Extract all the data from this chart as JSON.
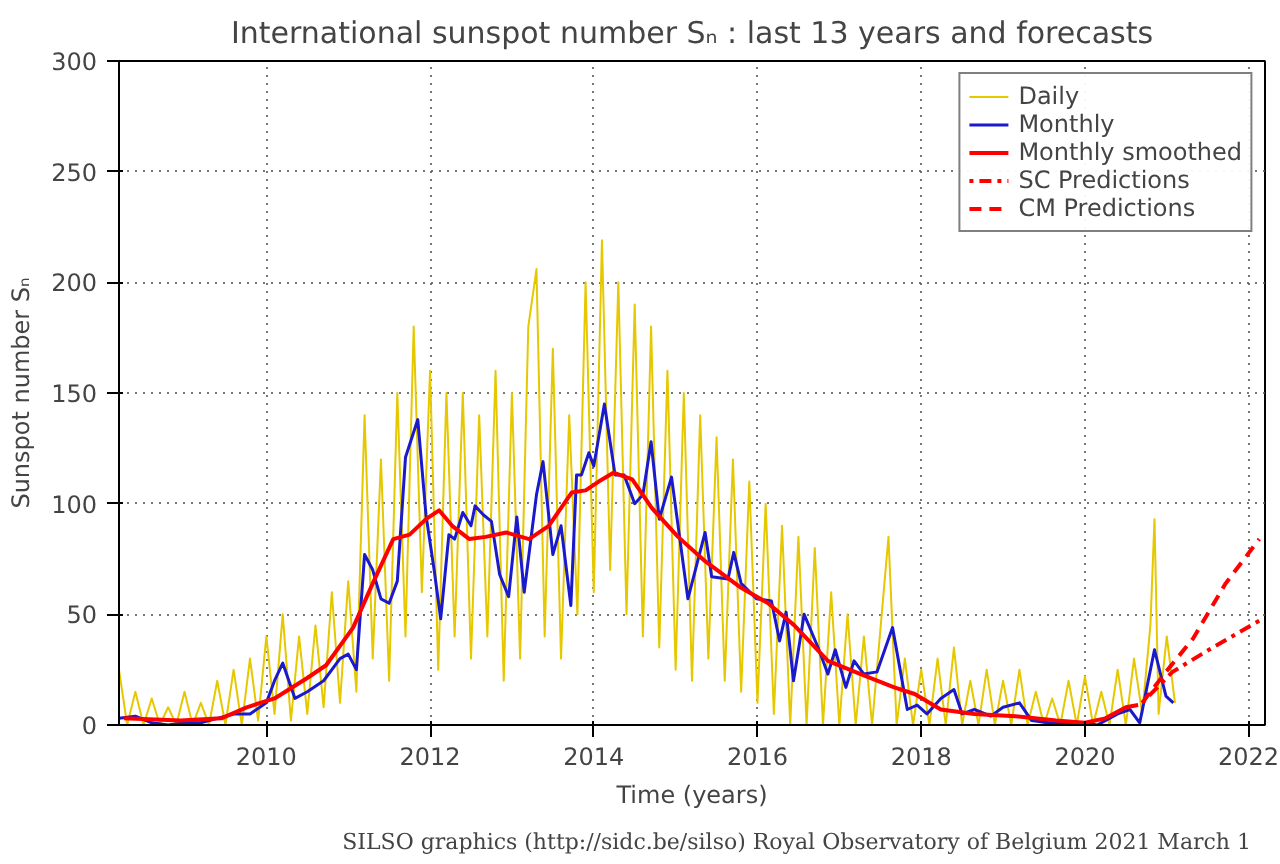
{
  "chart_data": {
    "type": "line",
    "title": "International sunspot number Sₙ : last 13 years and forecasts",
    "xlabel": "Time (years)",
    "ylabel": "Sunspot number Sₙ",
    "annotations": [
      "SILSO graphics (http://sidc.be/silso)  Royal Observatory of Belgium  2021 March 1"
    ],
    "xlim": [
      2008.2,
      2022.2
    ],
    "xticks": [
      2010,
      2012,
      2014,
      2016,
      2018,
      2020,
      2022
    ],
    "ylim": [
      0,
      300
    ],
    "yticks": [
      0,
      50,
      100,
      150,
      200,
      250,
      300
    ],
    "grid": true,
    "legend": "top right",
    "series": [
      {
        "name": "Daily",
        "color": "#e6c800",
        "line_style": "solid",
        "x": [
          2008.2,
          2008.3,
          2008.4,
          2008.5,
          2008.6,
          2008.7,
          2008.8,
          2008.9,
          2009.0,
          2009.1,
          2009.2,
          2009.3,
          2009.4,
          2009.5,
          2009.6,
          2009.7,
          2009.8,
          2009.9,
          2010.0,
          2010.1,
          2010.2,
          2010.3,
          2010.4,
          2010.5,
          2010.6,
          2010.7,
          2010.8,
          2010.9,
          2011.0,
          2011.1,
          2011.2,
          2011.3,
          2011.4,
          2011.5,
          2011.6,
          2011.7,
          2011.8,
          2011.9,
          2012.0,
          2012.1,
          2012.2,
          2012.3,
          2012.4,
          2012.5,
          2012.6,
          2012.7,
          2012.8,
          2012.9,
          2013.0,
          2013.1,
          2013.2,
          2013.3,
          2013.4,
          2013.5,
          2013.6,
          2013.7,
          2013.8,
          2013.9,
          2014.0,
          2014.1,
          2014.2,
          2014.3,
          2014.4,
          2014.5,
          2014.6,
          2014.7,
          2014.8,
          2014.9,
          2015.0,
          2015.1,
          2015.2,
          2015.3,
          2015.4,
          2015.5,
          2015.6,
          2015.7,
          2015.8,
          2015.9,
          2016.0,
          2016.1,
          2016.2,
          2016.3,
          2016.4,
          2016.5,
          2016.6,
          2016.7,
          2016.8,
          2016.9,
          2017.0,
          2017.1,
          2017.2,
          2017.3,
          2017.4,
          2017.6,
          2017.7,
          2017.8,
          2017.9,
          2018.0,
          2018.1,
          2018.2,
          2018.3,
          2018.4,
          2018.5,
          2018.6,
          2018.7,
          2018.8,
          2018.9,
          2019.0,
          2019.1,
          2019.2,
          2019.3,
          2019.4,
          2019.5,
          2019.6,
          2019.7,
          2019.8,
          2019.9,
          2020.0,
          2020.1,
          2020.2,
          2020.3,
          2020.4,
          2020.5,
          2020.6,
          2020.7,
          2020.8,
          2020.85,
          2020.9,
          2021.0,
          2021.1
        ],
        "values": [
          25,
          0,
          15,
          0,
          12,
          0,
          8,
          0,
          15,
          0,
          10,
          0,
          20,
          0,
          25,
          0,
          30,
          2,
          40,
          5,
          50,
          2,
          40,
          5,
          45,
          8,
          60,
          10,
          65,
          15,
          140,
          30,
          120,
          20,
          150,
          40,
          180,
          60,
          160,
          25,
          150,
          40,
          150,
          30,
          140,
          40,
          160,
          20,
          150,
          30,
          180,
          206,
          40,
          170,
          30,
          140,
          50,
          200,
          60,
          219,
          70,
          200,
          50,
          190,
          40,
          180,
          35,
          160,
          25,
          150,
          20,
          140,
          30,
          130,
          20,
          120,
          15,
          110,
          10,
          100,
          5,
          90,
          0,
          85,
          0,
          80,
          0,
          60,
          0,
          50,
          0,
          40,
          0,
          85,
          0,
          30,
          0,
          25,
          0,
          30,
          0,
          35,
          0,
          20,
          0,
          25,
          0,
          20,
          0,
          25,
          0,
          15,
          0,
          12,
          0,
          20,
          0,
          22,
          0,
          15,
          0,
          25,
          0,
          30,
          5,
          45,
          93,
          5,
          40,
          10
        ]
      },
      {
        "name": "Monthly",
        "color": "#1a1acc",
        "line_style": "solid",
        "x": [
          2008.2,
          2008.4,
          2008.6,
          2008.8,
          2009.0,
          2009.2,
          2009.4,
          2009.6,
          2009.8,
          2010.0,
          2010.1,
          2010.2,
          2010.35,
          2010.5,
          2010.7,
          2010.9,
          2011.0,
          2011.1,
          2011.2,
          2011.3,
          2011.4,
          2011.5,
          2011.6,
          2011.7,
          2011.85,
          2011.95,
          2012.05,
          2012.13,
          2012.23,
          2012.3,
          2012.4,
          2012.5,
          2012.55,
          2012.65,
          2012.75,
          2012.85,
          2012.96,
          2013.06,
          2013.15,
          2013.3,
          2013.38,
          2013.5,
          2013.6,
          2013.72,
          2013.79,
          2013.85,
          2013.94,
          2014.0,
          2014.13,
          2014.26,
          2014.37,
          2014.5,
          2014.6,
          2014.7,
          2014.8,
          2014.95,
          2015.15,
          2015.36,
          2015.44,
          2015.64,
          2015.71,
          2015.8,
          2015.99,
          2016.17,
          2016.27,
          2016.35,
          2016.44,
          2016.57,
          2016.74,
          2016.86,
          2016.95,
          2017.08,
          2017.18,
          2017.3,
          2017.46,
          2017.65,
          2017.83,
          2017.95,
          2018.07,
          2018.24,
          2018.4,
          2018.5,
          2018.65,
          2018.85,
          2019.0,
          2019.2,
          2019.35,
          2019.55,
          2019.8,
          2020.0,
          2020.15,
          2020.4,
          2020.55,
          2020.67,
          2020.85,
          2020.99,
          2021.08
        ],
        "values": [
          3,
          4,
          1,
          null,
          1,
          1,
          3,
          5,
          5,
          10,
          20,
          28,
          12,
          15,
          20,
          30,
          32,
          25,
          77,
          70,
          57,
          55,
          65,
          121,
          138,
          95,
          70,
          48,
          86,
          84,
          96,
          90,
          99,
          95,
          92,
          68,
          58,
          94,
          60,
          104,
          119,
          77,
          90,
          54,
          113,
          113,
          123,
          117,
          145,
          113,
          113,
          100,
          104,
          128,
          93,
          112,
          57,
          87,
          67,
          66,
          78,
          64,
          57,
          56,
          38,
          51,
          20,
          50,
          35,
          23,
          34,
          17,
          29,
          23,
          24,
          44,
          7,
          9,
          5,
          12,
          16,
          5,
          7,
          4,
          8,
          10,
          2,
          1,
          1,
          1,
          0,
          5,
          7,
          1,
          34,
          13,
          10
        ]
      },
      {
        "name": "Monthly smoothed",
        "color": "#ff0000",
        "line_style": "solid",
        "x": [
          2008.26,
          2008.95,
          2009.45,
          2009.76,
          2010.1,
          2010.49,
          2010.73,
          2011.06,
          2011.3,
          2011.55,
          2011.75,
          2011.95,
          2012.11,
          2012.27,
          2012.48,
          2012.68,
          2012.93,
          2013.21,
          2013.45,
          2013.73,
          2013.9,
          2014.06,
          2014.24,
          2014.47,
          2014.71,
          2015.03,
          2015.36,
          2015.8,
          2016.13,
          2016.45,
          2016.86,
          2017.26,
          2017.67,
          2017.92,
          2018.24,
          2018.65,
          2019.15,
          2019.65,
          2020.0,
          2020.25,
          2020.5,
          2020.65
        ],
        "values": [
          3,
          2,
          3,
          8,
          12,
          21,
          27,
          44,
          64,
          84,
          86,
          93,
          97,
          90,
          84,
          85,
          87,
          84,
          90,
          105,
          106,
          110,
          114,
          111,
          98,
          85,
          74,
          62,
          55,
          45,
          29,
          23,
          17,
          14,
          7,
          5,
          4,
          2,
          1,
          3,
          8,
          9
        ]
      },
      {
        "name": "SC Predictions",
        "color": "#ff0000",
        "line_style": "dotted",
        "x": [
          2020.7,
          2021.07,
          2021.56,
          2022.17
        ],
        "values": [
          10,
          24,
          35,
          48
        ]
      },
      {
        "name": "CM Predictions",
        "color": "#ff0000",
        "line_style": "dashed",
        "x": [
          2020.7,
          2020.99,
          2021.32,
          2021.72,
          2022.13
        ],
        "values": [
          10,
          24,
          39,
          64,
          84
        ]
      }
    ]
  }
}
